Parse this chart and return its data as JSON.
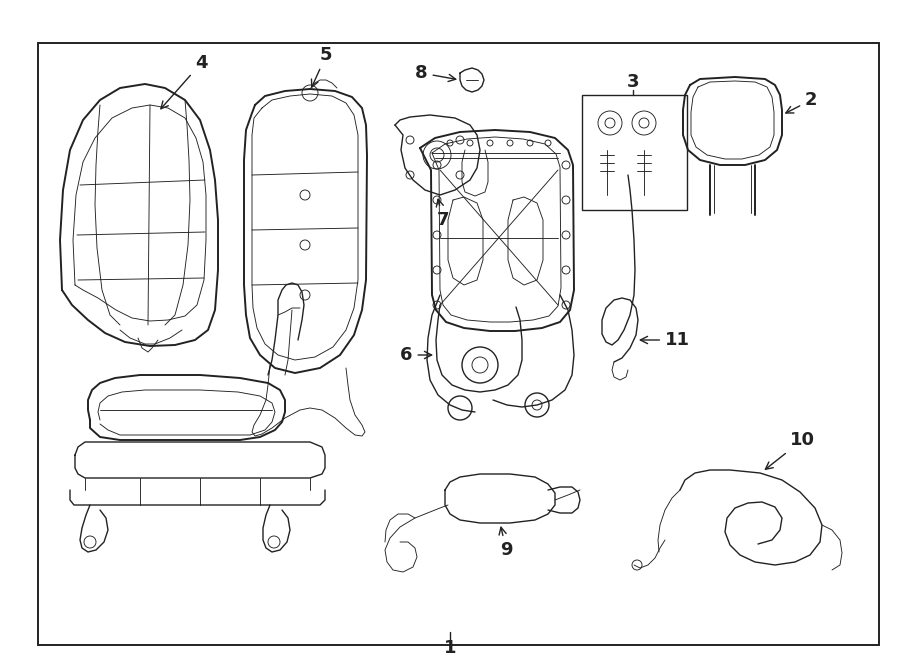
{
  "bg_color": "#ffffff",
  "border_color": "#222222",
  "line_color": "#222222",
  "fig_width": 9.0,
  "fig_height": 6.62,
  "dpi": 100,
  "border": [
    0.042,
    0.065,
    0.935,
    0.91
  ],
  "lw_heavy": 1.4,
  "lw_med": 1.0,
  "lw_thin": 0.65,
  "label_fs": 13
}
